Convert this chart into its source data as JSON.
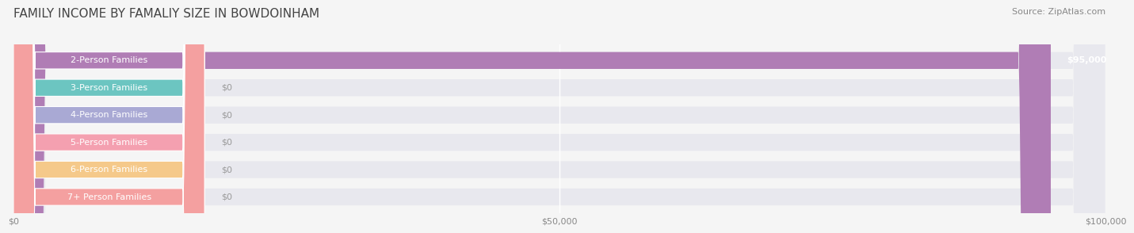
{
  "title": "FAMILY INCOME BY FAMALIY SIZE IN BOWDOINHAM",
  "source": "Source: ZipAtlas.com",
  "categories": [
    "2-Person Families",
    "3-Person Families",
    "4-Person Families",
    "5-Person Families",
    "6-Person Families",
    "7+ Person Families"
  ],
  "values": [
    95000,
    0,
    0,
    0,
    0,
    0
  ],
  "bar_colors": [
    "#b07db5",
    "#6cc5c1",
    "#a9a9d4",
    "#f4a0b0",
    "#f5c98a",
    "#f4a9a0"
  ],
  "label_colors": [
    "#b07db5",
    "#6cc5c1",
    "#a9a9d4",
    "#f4a0b0",
    "#f5c98a",
    "#f4a0a0"
  ],
  "value_labels": [
    "$95,000",
    "$0",
    "$0",
    "$0",
    "$0",
    "$0"
  ],
  "xlim": [
    0,
    100000
  ],
  "xticks": [
    0,
    50000,
    100000
  ],
  "xticklabels": [
    "$0",
    "$50,000",
    "$100,000"
  ],
  "background_color": "#f5f5f5",
  "bar_background_color": "#e8e8ee",
  "title_fontsize": 11,
  "source_fontsize": 8,
  "label_fontsize": 8,
  "value_fontsize": 8
}
